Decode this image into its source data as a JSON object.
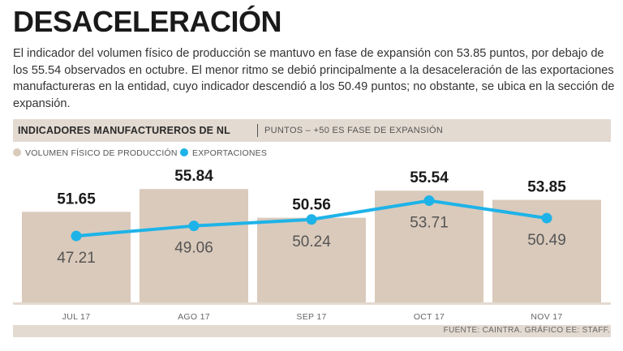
{
  "title": "DESACELERACIÓN",
  "description": "El indicador del volumen físico de producción se mantuvo en fase de expansión con 53.85 puntos, por debajo de los 55.54 observados en octubre. El menor ritmo se debió principalmente a la desaceleración de las exportaciones manufactureras en la entidad, cuyo indicador descendió a los 50.49 puntos; no obstante, se ubica en la sección de expansión.",
  "chart_header": {
    "title": "INDICADORES MANUFACTUREROS DE NL",
    "subtitle": "PUNTOS – +50 ES FASE DE EXPANSIÓN"
  },
  "source": "FUENTE: CAINTRA.  GRÁFICO EE: STAFF.",
  "chart_data": {
    "type": "bar",
    "categories": [
      "JUL 17",
      "AGO 17",
      "SEP 17",
      "OCT 17",
      "NOV 17"
    ],
    "series": [
      {
        "name": "VOLUMEN FÍSICO DE PRODUCCIÓN",
        "kind": "bar",
        "color": "#dacabb",
        "values": [
          51.65,
          55.84,
          50.56,
          55.54,
          53.85
        ],
        "labels": [
          "51.65",
          "55.84",
          "50.56",
          "55.54",
          "53.85"
        ]
      },
      {
        "name": "EXPORTACIONES",
        "kind": "line",
        "color": "#1eb3e8",
        "values": [
          47.21,
          49.06,
          50.24,
          53.71,
          50.49
        ],
        "labels": [
          "47.21",
          "49.06",
          "50.24",
          "53.71",
          "50.49"
        ]
      }
    ],
    "title": "INDICADORES MANUFACTUREROS DE NL",
    "xlabel": "",
    "ylabel": "PUNTOS",
    "ylim": [
      35,
      59
    ],
    "grid": false,
    "legend": "top-left"
  }
}
